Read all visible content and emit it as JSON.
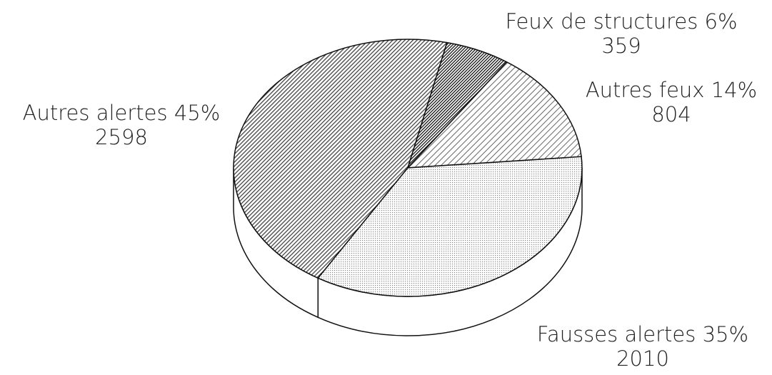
{
  "chart_data": {
    "type": "pie",
    "categories": [
      "Autres alertes",
      "Feux de structures",
      "Autres feux",
      "Fausses alertes"
    ],
    "values": [
      45,
      6,
      14,
      35
    ],
    "value_labels": [
      "45%",
      "6%",
      "14%",
      "35%"
    ],
    "counts": [
      2598,
      359,
      804,
      2010
    ],
    "colors": [
      "#444444",
      "#111111",
      "#666666",
      "#888888"
    ]
  }
}
